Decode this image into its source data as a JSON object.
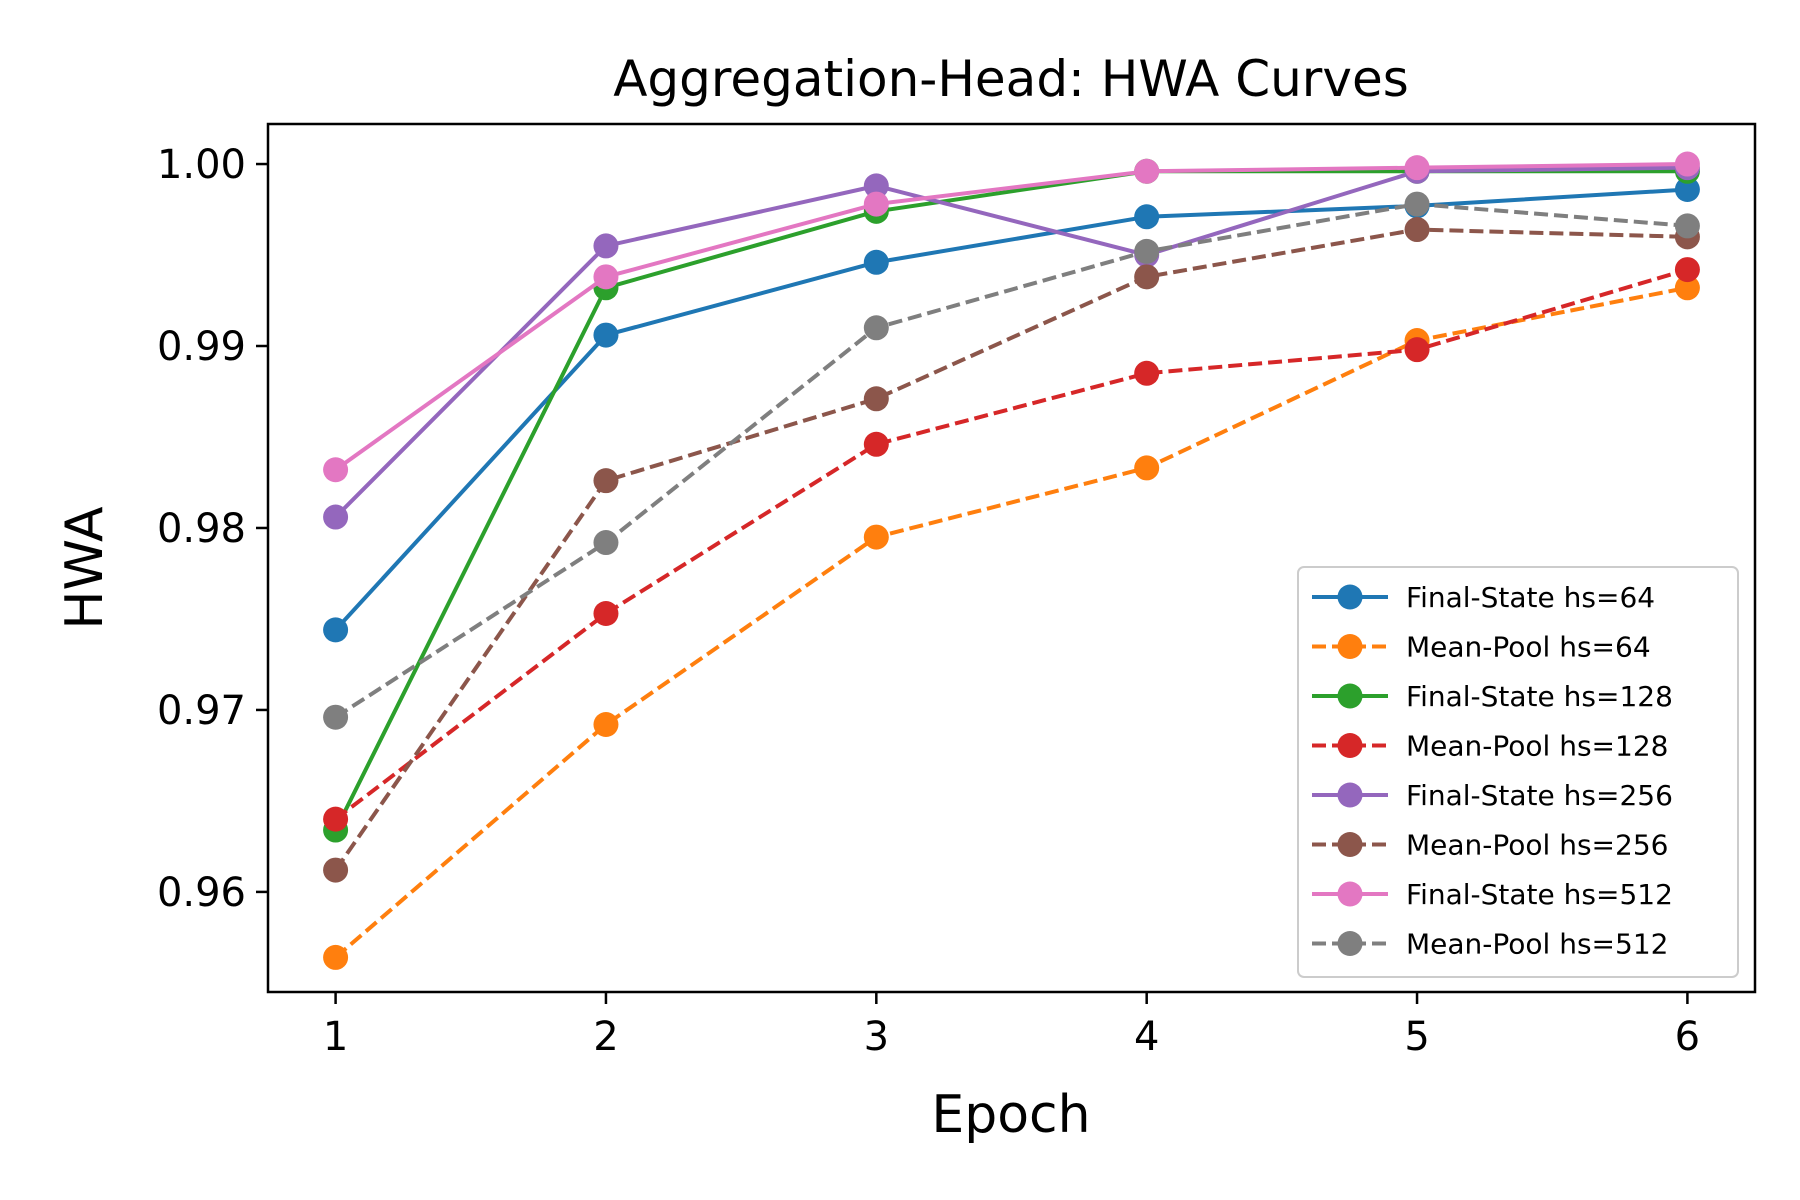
{
  "chart_data": {
    "type": "line",
    "title": "Aggregation-Head: HWA Curves",
    "xlabel": "Epoch",
    "ylabel": "HWA",
    "x": [
      1,
      2,
      3,
      4,
      5,
      6
    ],
    "xlim": [
      0.75,
      6.25
    ],
    "ylim": [
      0.9545,
      1.0022
    ],
    "xticks": [
      "1",
      "2",
      "3",
      "4",
      "5",
      "6"
    ],
    "yticks": [
      0.96,
      0.97,
      0.98,
      0.99,
      1.0
    ],
    "ytick_labels": [
      "0.96",
      "0.97",
      "0.98",
      "0.99",
      "1.00"
    ],
    "grid": false,
    "legend_position": "lower-right",
    "series": [
      {
        "name": "Final-State hs=64",
        "color": "#1f77b4",
        "style": "solid",
        "values": [
          0.9744,
          0.9906,
          0.9946,
          0.9971,
          0.9977,
          0.9986
        ]
      },
      {
        "name": "Mean-Pool hs=64",
        "color": "#ff7f0e",
        "style": "dashed",
        "values": [
          0.9564,
          0.9692,
          0.9795,
          0.9833,
          0.9903,
          0.9932
        ]
      },
      {
        "name": "Final-State hs=128",
        "color": "#2ca02c",
        "style": "solid",
        "values": [
          0.9634,
          0.9932,
          0.9974,
          0.9996,
          0.9996,
          0.9996
        ]
      },
      {
        "name": "Mean-Pool hs=128",
        "color": "#d62728",
        "style": "dashed",
        "values": [
          0.964,
          0.9753,
          0.9846,
          0.9885,
          0.9898,
          0.9942
        ]
      },
      {
        "name": "Final-State hs=256",
        "color": "#9467bd",
        "style": "solid",
        "values": [
          0.9806,
          0.9955,
          0.9988,
          0.995,
          0.9996,
          0.9998
        ]
      },
      {
        "name": "Mean-Pool hs=256",
        "color": "#8c564b",
        "style": "dashed",
        "values": [
          0.9612,
          0.9826,
          0.9871,
          0.9938,
          0.9964,
          0.996
        ]
      },
      {
        "name": "Final-State hs=512",
        "color": "#e377c2",
        "style": "solid",
        "values": [
          0.9832,
          0.9938,
          0.9978,
          0.9996,
          0.9998,
          1.0
        ]
      },
      {
        "name": "Mean-Pool hs=512",
        "color": "#7f7f7f",
        "style": "dashed",
        "values": [
          0.9696,
          0.9792,
          0.991,
          0.9952,
          0.9978,
          0.9966
        ]
      }
    ]
  }
}
